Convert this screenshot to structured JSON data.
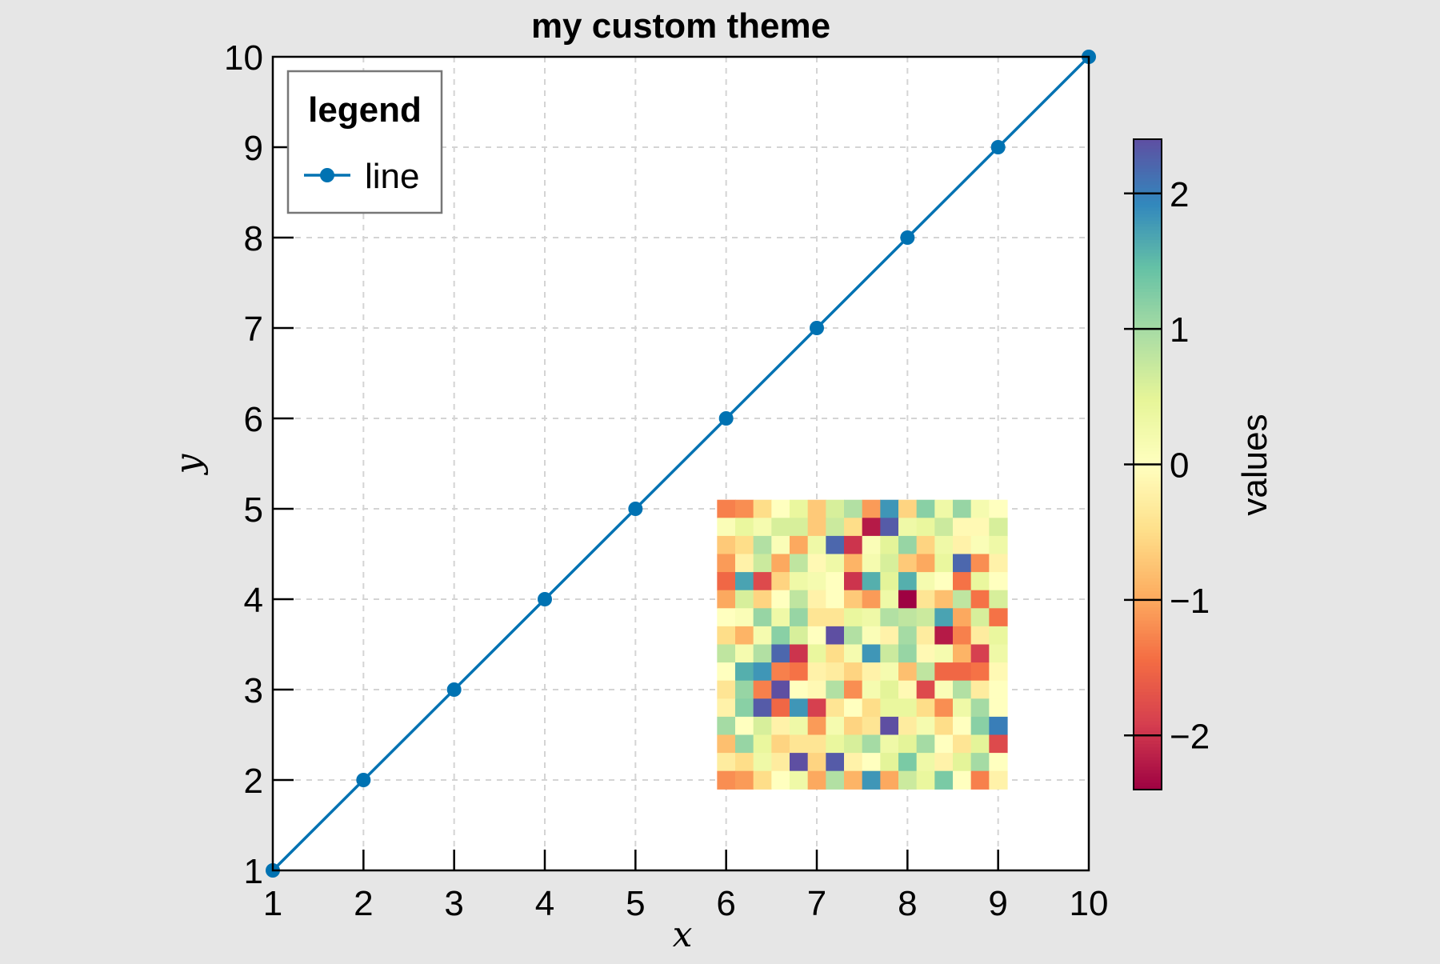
{
  "chart_data": {
    "type": "line",
    "title": "my custom theme",
    "xlabel": "x",
    "ylabel": "y",
    "xlim": [
      1,
      10
    ],
    "ylim": [
      1,
      10
    ],
    "xticks": [
      1,
      2,
      3,
      4,
      5,
      6,
      7,
      8,
      9,
      10
    ],
    "yticks": [
      1,
      2,
      3,
      4,
      5,
      6,
      7,
      8,
      9,
      10
    ],
    "grid": true,
    "series": [
      {
        "name": "line",
        "color": "#0072b2",
        "x": [
          1,
          2,
          3,
          4,
          5,
          6,
          7,
          8,
          9,
          10
        ],
        "y": [
          1,
          2,
          3,
          4,
          5,
          6,
          7,
          8,
          9,
          10
        ]
      }
    ],
    "legend": {
      "title": "legend",
      "position": "top-left",
      "entries": [
        "line"
      ]
    },
    "heatmap": {
      "x_range": [
        5.9,
        9.1
      ],
      "y_range": [
        1.9,
        5.1
      ],
      "rows": 16,
      "cols": 16,
      "colormap": "Spectral",
      "values": [
        [
          -1.3,
          -1.2,
          -0.5,
          0.0,
          0.4,
          -0.7,
          0.6,
          0.9,
          -1.1,
          1.8,
          -0.6,
          1.2,
          0.3,
          1.1,
          0.2,
          0.0
        ],
        [
          0.1,
          0.4,
          0.2,
          0.6,
          0.6,
          -0.7,
          0.7,
          -0.5,
          -2.2,
          2.3,
          0.3,
          0.4,
          0.7,
          -0.1,
          -0.1,
          0.6
        ],
        [
          -0.7,
          -0.5,
          0.9,
          0.1,
          -1.0,
          0.3,
          2.2,
          -2.0,
          0.1,
          0.5,
          1.1,
          -0.6,
          0.3,
          -0.2,
          0.1,
          0.3
        ],
        [
          -1.1,
          -0.2,
          0.7,
          -1.0,
          0.8,
          -0.1,
          0.3,
          -0.9,
          0.2,
          0.6,
          -0.7,
          -1.0,
          0.4,
          2.2,
          -1.2,
          -0.2
        ],
        [
          -1.5,
          1.7,
          -1.8,
          -0.6,
          0.3,
          0.2,
          0.0,
          -2.0,
          1.6,
          0.5,
          1.6,
          0.2,
          0.0,
          -1.4,
          0.4,
          0.0
        ],
        [
          -1.0,
          0.6,
          -0.6,
          0.0,
          0.8,
          -0.2,
          0.0,
          -0.7,
          -1.1,
          0.3,
          -2.4,
          -0.4,
          -0.8,
          0.8,
          -1.4,
          0.6
        ],
        [
          0.0,
          0.1,
          1.1,
          0.3,
          1.1,
          -0.4,
          -0.4,
          0.4,
          0.3,
          0.9,
          0.8,
          0.7,
          1.7,
          -1.0,
          0.6,
          -1.4
        ],
        [
          -0.5,
          -0.9,
          0.2,
          1.2,
          0.6,
          0.0,
          2.4,
          0.9,
          0.1,
          -0.2,
          1.0,
          -0.3,
          -2.2,
          -1.3,
          -0.3,
          0.4
        ],
        [
          0.8,
          0.2,
          0.9,
          2.2,
          -2.0,
          0.4,
          -0.5,
          0.2,
          1.8,
          0.7,
          1.1,
          -0.1,
          0.2,
          -0.9,
          -1.9,
          0.3
        ],
        [
          0.0,
          1.6,
          1.8,
          -1.3,
          -1.4,
          -0.2,
          -0.3,
          -0.6,
          -0.2,
          0.2,
          -0.8,
          0.8,
          -1.5,
          -1.5,
          -1.4,
          -0.1
        ],
        [
          -0.4,
          1.1,
          -1.3,
          2.4,
          0.0,
          -0.1,
          0.9,
          -1.2,
          0.2,
          0.5,
          -0.1,
          -1.8,
          0.1,
          0.9,
          -0.3,
          0.0
        ],
        [
          -0.2,
          1.2,
          2.3,
          -1.5,
          1.8,
          -1.9,
          -0.4,
          0.0,
          -0.5,
          0.4,
          0.4,
          -0.5,
          -1.2,
          0.3,
          1.0,
          0.0
        ],
        [
          1.0,
          0.0,
          0.6,
          -0.2,
          0.3,
          -1.1,
          0.2,
          -0.6,
          -0.4,
          2.4,
          -0.3,
          0.2,
          -0.5,
          0.0,
          1.2,
          2.0
        ],
        [
          -0.8,
          1.1,
          0.4,
          -0.6,
          -0.4,
          -0.4,
          0.4,
          0.6,
          1.0,
          0.3,
          0.5,
          1.0,
          0.0,
          -0.4,
          0.5,
          -1.8
        ],
        [
          -0.3,
          -0.5,
          0.3,
          -0.3,
          2.4,
          -0.6,
          2.3,
          -0.2,
          0.0,
          0.5,
          1.3,
          0.3,
          -0.2,
          0.5,
          1.0,
          0.0
        ],
        [
          -1.2,
          -1.1,
          -0.5,
          0.0,
          0.3,
          -1.0,
          0.9,
          -0.9,
          1.8,
          -1.0,
          0.7,
          0.4,
          1.3,
          0.0,
          -1.3,
          -0.2
        ]
      ]
    },
    "colorbar": {
      "label": "values",
      "range": [
        -2.4,
        2.4
      ],
      "ticks": [
        -2,
        -1,
        0,
        1,
        2
      ],
      "tick_labels": [
        "−2",
        "−1",
        "0",
        "1",
        "2"
      ]
    }
  }
}
